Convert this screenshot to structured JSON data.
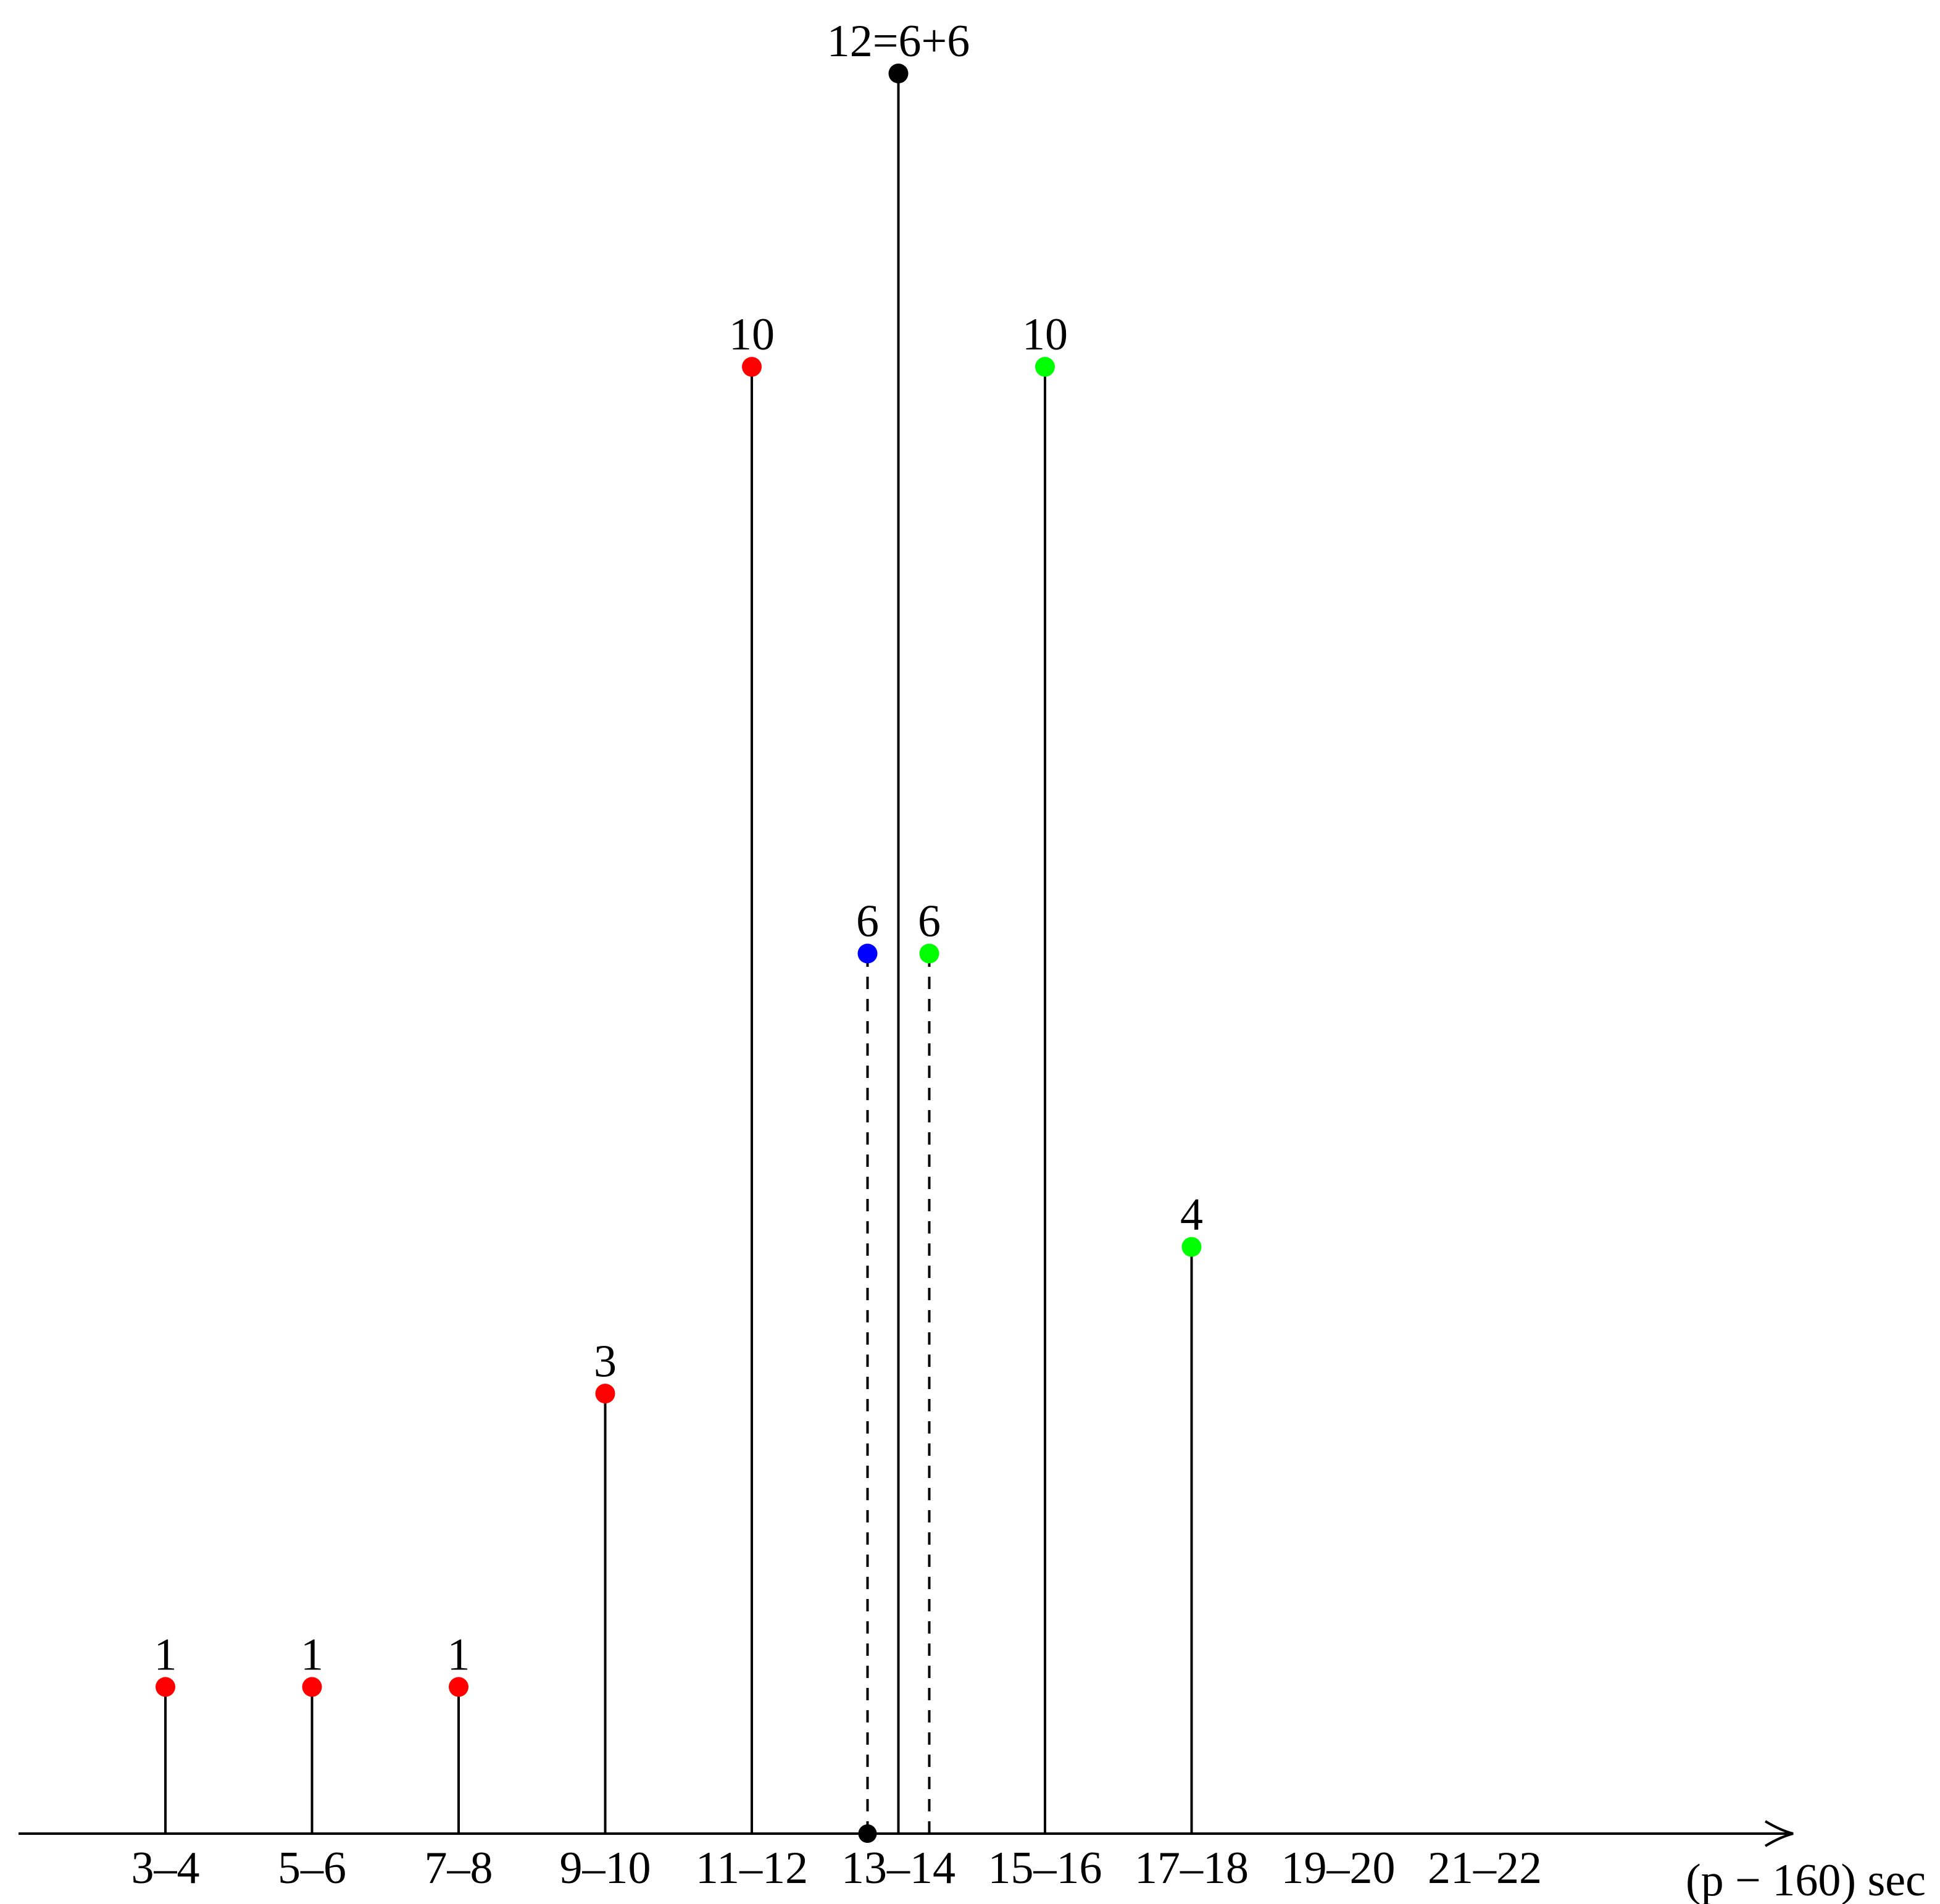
{
  "chart_data": {
    "type": "lollipop",
    "categories": [
      "3–4",
      "5–6",
      "7–8",
      "9–10",
      "11–12",
      "13–14",
      "15–16",
      "17–18",
      "19–20",
      "21–22"
    ],
    "xlabel": "(p − 160) sec",
    "ylim": [
      0,
      12
    ],
    "series": [
      {
        "color": "#ff0000",
        "style": "solid",
        "values": [
          1,
          1,
          1,
          3,
          10,
          null,
          null,
          null,
          null,
          null
        ]
      },
      {
        "color": "#000000",
        "style": "solid",
        "values": [
          null,
          null,
          null,
          null,
          null,
          12,
          null,
          null,
          null,
          null
        ],
        "value_labels": [
          null,
          null,
          null,
          null,
          null,
          "12=6+6",
          null,
          null,
          null,
          null
        ]
      },
      {
        "color": "#0000ff",
        "style": "dashed",
        "values": [
          null,
          null,
          null,
          null,
          null,
          6,
          null,
          null,
          null,
          null
        ]
      },
      {
        "color": "#00ff00",
        "style": "dashed",
        "values": [
          null,
          null,
          null,
          null,
          null,
          6,
          null,
          null,
          null,
          null
        ]
      },
      {
        "color": "#00ff00",
        "style": "solid",
        "values": [
          null,
          null,
          null,
          null,
          null,
          null,
          10,
          4,
          null,
          null
        ]
      }
    ]
  }
}
